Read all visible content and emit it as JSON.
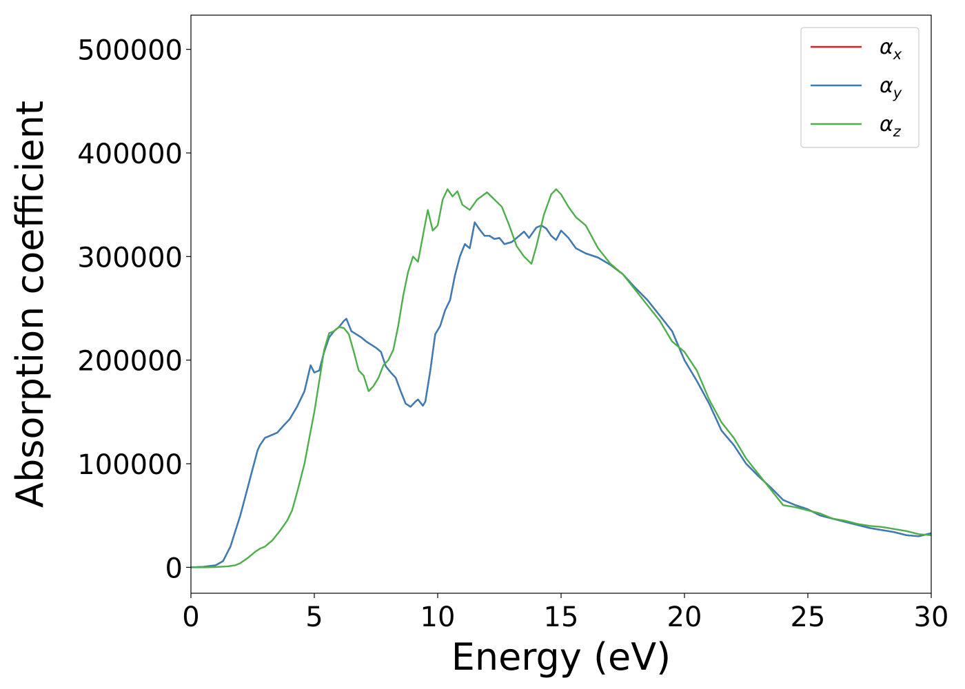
{
  "chart_data": {
    "type": "line",
    "title": "",
    "xlabel": "Energy (eV)",
    "ylabel": "Absorption coefficient",
    "xlim": [
      0,
      30
    ],
    "ylim": [
      -25000,
      533000
    ],
    "xticks": [
      0,
      5,
      10,
      15,
      20,
      25,
      30
    ],
    "xtick_labels": [
      "0",
      "5",
      "10",
      "15",
      "20",
      "25",
      "30"
    ],
    "yticks": [
      0,
      100000,
      200000,
      300000,
      400000,
      500000
    ],
    "ytick_labels": [
      "0",
      "100000",
      "200000",
      "300000",
      "400000",
      "500000"
    ],
    "grid": false,
    "legend_position": "top-right",
    "series": [
      {
        "name": "α_x",
        "legend_symbol": "α",
        "legend_subscript": "x",
        "color": "#e41a1c",
        "x": [
          0,
          0.5,
          1,
          1.3,
          1.6,
          1.8,
          2,
          2.2,
          2.5,
          2.7,
          2.8,
          3,
          3.2,
          3.5,
          3.8,
          4,
          4.3,
          4.6,
          4.85,
          5,
          5.2,
          5.4,
          5.6,
          5.8,
          6,
          6.2,
          6.3,
          6.5,
          6.7,
          6.9,
          7.1,
          7.3,
          7.5,
          7.7,
          7.9,
          8.1,
          8.3,
          8.5,
          8.7,
          8.9,
          9.1,
          9.2,
          9.4,
          9.5,
          9.7,
          9.9,
          10.1,
          10.3,
          10.5,
          10.7,
          10.9,
          11.1,
          11.3,
          11.5,
          11.7,
          11.9,
          12.1,
          12.3,
          12.5,
          12.7,
          13,
          13.3,
          13.5,
          13.7,
          14,
          14.2,
          14.4,
          14.6,
          14.8,
          15,
          15.3,
          15.6,
          16,
          16.5,
          17,
          17.5,
          18,
          18.5,
          19,
          19.5,
          20,
          20.5,
          21,
          21.5,
          22,
          22.5,
          23,
          23.5,
          24,
          24.5,
          25,
          25.5,
          26,
          26.5,
          27,
          27.5,
          28,
          28.5,
          29,
          29.5,
          30
        ],
        "y": [
          0,
          500,
          2000,
          6000,
          20000,
          35000,
          50000,
          68000,
          95000,
          113000,
          118000,
          125000,
          127000,
          130000,
          138000,
          143000,
          155000,
          170000,
          195000,
          188000,
          190000,
          208000,
          222000,
          228000,
          232000,
          238000,
          240000,
          228000,
          225000,
          222000,
          218000,
          215000,
          212000,
          208000,
          194000,
          188000,
          183000,
          170000,
          158000,
          155000,
          160000,
          162000,
          156000,
          160000,
          190000,
          225000,
          233000,
          248000,
          258000,
          282000,
          300000,
          312000,
          308000,
          333000,
          326000,
          320000,
          320000,
          317000,
          318000,
          312000,
          314000,
          320000,
          324000,
          318000,
          328000,
          330000,
          327000,
          320000,
          316000,
          325000,
          318000,
          308000,
          303000,
          299000,
          292000,
          283000,
          270000,
          258000,
          243000,
          228000,
          200000,
          180000,
          158000,
          132000,
          118000,
          100000,
          88000,
          77000,
          65000,
          60000,
          56000,
          50000,
          47000,
          44000,
          41000,
          38000,
          36000,
          34000,
          31000,
          30000,
          33000
        ]
      },
      {
        "name": "α_y",
        "legend_symbol": "α",
        "legend_subscript": "y",
        "color": "#377eb8",
        "x": [
          0,
          0.5,
          1,
          1.3,
          1.6,
          1.8,
          2,
          2.2,
          2.5,
          2.7,
          2.8,
          3,
          3.2,
          3.5,
          3.8,
          4,
          4.3,
          4.6,
          4.85,
          5,
          5.2,
          5.4,
          5.6,
          5.8,
          6,
          6.2,
          6.3,
          6.5,
          6.7,
          6.9,
          7.1,
          7.3,
          7.5,
          7.7,
          7.9,
          8.1,
          8.3,
          8.5,
          8.7,
          8.9,
          9.1,
          9.2,
          9.4,
          9.5,
          9.7,
          9.9,
          10.1,
          10.3,
          10.5,
          10.7,
          10.9,
          11.1,
          11.3,
          11.5,
          11.7,
          11.9,
          12.1,
          12.3,
          12.5,
          12.7,
          13,
          13.3,
          13.5,
          13.7,
          14,
          14.2,
          14.4,
          14.6,
          14.8,
          15,
          15.3,
          15.6,
          16,
          16.5,
          17,
          17.5,
          18,
          18.5,
          19,
          19.5,
          20,
          20.5,
          21,
          21.5,
          22,
          22.5,
          23,
          23.5,
          24,
          24.5,
          25,
          25.5,
          26,
          26.5,
          27,
          27.5,
          28,
          28.5,
          29,
          29.5,
          30
        ],
        "y": [
          0,
          500,
          2000,
          6000,
          20000,
          35000,
          50000,
          68000,
          95000,
          113000,
          118000,
          125000,
          127000,
          130000,
          138000,
          143000,
          155000,
          170000,
          195000,
          188000,
          190000,
          208000,
          222000,
          228000,
          232000,
          238000,
          240000,
          228000,
          225000,
          222000,
          218000,
          215000,
          212000,
          208000,
          194000,
          188000,
          183000,
          170000,
          158000,
          155000,
          160000,
          162000,
          156000,
          160000,
          190000,
          225000,
          233000,
          248000,
          258000,
          282000,
          300000,
          312000,
          308000,
          333000,
          326000,
          320000,
          320000,
          317000,
          318000,
          312000,
          314000,
          320000,
          324000,
          318000,
          328000,
          330000,
          327000,
          320000,
          316000,
          325000,
          318000,
          308000,
          303000,
          299000,
          292000,
          283000,
          270000,
          258000,
          243000,
          228000,
          200000,
          180000,
          158000,
          132000,
          118000,
          100000,
          88000,
          77000,
          65000,
          60000,
          56000,
          50000,
          47000,
          44000,
          41000,
          38000,
          36000,
          34000,
          31000,
          30000,
          33000
        ]
      },
      {
        "name": "α_z",
        "legend_symbol": "α",
        "legend_subscript": "z",
        "color": "#4daf4a",
        "x": [
          0,
          0.5,
          1,
          1.5,
          1.8,
          2,
          2.3,
          2.6,
          2.8,
          3,
          3.3,
          3.6,
          3.9,
          4.1,
          4.3,
          4.6,
          4.8,
          5,
          5.2,
          5.4,
          5.6,
          5.8,
          6,
          6.2,
          6.4,
          6.6,
          6.8,
          7,
          7.2,
          7.4,
          7.6,
          7.8,
          8,
          8.2,
          8.4,
          8.6,
          8.8,
          9,
          9.2,
          9.4,
          9.6,
          9.8,
          10,
          10.2,
          10.4,
          10.6,
          10.8,
          11,
          11.3,
          11.6,
          12,
          12.3,
          12.6,
          12.9,
          13.2,
          13.5,
          13.8,
          14,
          14.3,
          14.6,
          14.8,
          15,
          15.3,
          15.6,
          16,
          16.5,
          17,
          17.5,
          18,
          18.5,
          19,
          19.5,
          20,
          20.5,
          21,
          21.5,
          22,
          22.5,
          23,
          23.5,
          24,
          24.5,
          25,
          25.5,
          26,
          26.5,
          27,
          27.5,
          28,
          28.5,
          29,
          29.5,
          30
        ],
        "y": [
          0,
          0,
          300,
          1000,
          2000,
          4000,
          9000,
          15000,
          18000,
          20000,
          26000,
          35000,
          45000,
          55000,
          72000,
          100000,
          125000,
          150000,
          180000,
          210000,
          226000,
          228000,
          232000,
          231000,
          225000,
          208000,
          190000,
          185000,
          170000,
          175000,
          183000,
          195000,
          200000,
          210000,
          233000,
          262000,
          285000,
          300000,
          295000,
          320000,
          345000,
          325000,
          330000,
          355000,
          365000,
          358000,
          363000,
          350000,
          345000,
          355000,
          362000,
          355000,
          348000,
          330000,
          310000,
          300000,
          293000,
          310000,
          340000,
          360000,
          365000,
          360000,
          348000,
          338000,
          330000,
          308000,
          293000,
          283000,
          268000,
          253000,
          238000,
          218000,
          208000,
          190000,
          162000,
          140000,
          125000,
          105000,
          90000,
          75000,
          60000,
          58000,
          55000,
          52000,
          47000,
          45000,
          42000,
          40000,
          39000,
          37000,
          35000,
          32000,
          31000
        ]
      }
    ]
  }
}
